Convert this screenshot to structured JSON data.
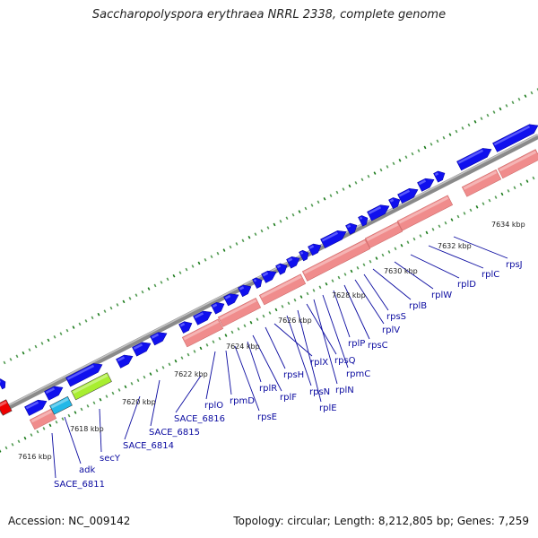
{
  "title": "Saccharopolyspora erythraea NRRL 2338, complete genome",
  "footer": {
    "accession": "Accession: NC_009142",
    "topology": "Topology: circular; Length: 8,212,805 bp; Genes: 7,259"
  },
  "colors": {
    "backbone": "#8a8a8a",
    "cds": "#1010ee",
    "gene": "#f08c8c",
    "rrna": "#ee0000",
    "trna": "#22b8e8",
    "tmrna": "#a8ee30",
    "ticks": "#1a7a1a",
    "label": "#0a0aa0"
  },
  "kbp_labels": [
    "7616 kbp",
    "7618 kbp",
    "7620 kbp",
    "7622 kbp",
    "7624 kbp",
    "7626 kbp",
    "7628 kbp",
    "7630 kbp",
    "7632 kbp",
    "7634 kbp"
  ],
  "gene_labels": [
    "SACE_6811",
    "adk",
    "secY",
    "SACE_6814",
    "SACE_6815",
    "SACE_6816",
    "rplO",
    "rpmD",
    "rpsE",
    "rplR",
    "rplF",
    "rpsH",
    "rplX",
    "rpsN",
    "rplE",
    "rpsQ",
    "rplN",
    "rpmC",
    "rplP",
    "rpsC",
    "rplV",
    "rpsS",
    "rplB",
    "rplW",
    "rplD",
    "rplC",
    "rpsJ"
  ]
}
